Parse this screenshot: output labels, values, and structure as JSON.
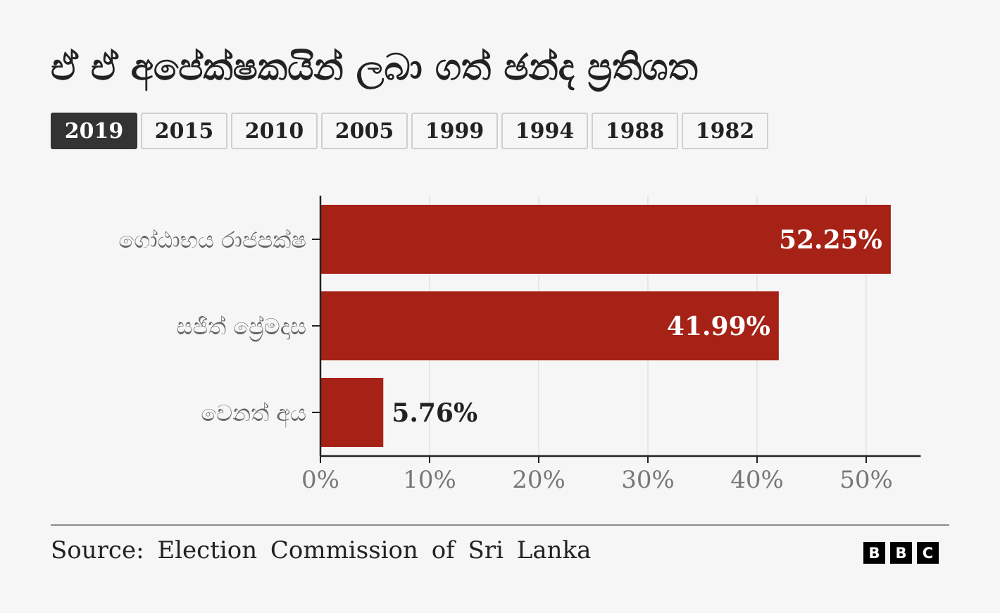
{
  "title": "ඒ ඒ අපේක්ෂකයින් ලබා ගත් ඡන්ද ප්‍රතිශත",
  "tabs": [
    {
      "label": "2019",
      "active": true
    },
    {
      "label": "2015",
      "active": false
    },
    {
      "label": "2010",
      "active": false
    },
    {
      "label": "2005",
      "active": false
    },
    {
      "label": "1999",
      "active": false
    },
    {
      "label": "1994",
      "active": false
    },
    {
      "label": "1988",
      "active": false
    },
    {
      "label": "1982",
      "active": false
    }
  ],
  "chart_data": {
    "type": "bar",
    "orientation": "horizontal",
    "categories": [
      "ගෝඨාභය රාජපක්ෂ",
      "සජිත් ප්‍රේමදාස",
      "වෙනත් අය"
    ],
    "values": [
      52.25,
      41.99,
      5.76
    ],
    "data_labels": [
      "52.25%",
      "41.99%",
      "5.76%"
    ],
    "x_ticks": [
      0,
      10,
      20,
      30,
      40,
      50
    ],
    "x_tick_labels": [
      "0%",
      "10%",
      "20%",
      "30%",
      "40%",
      "50%"
    ],
    "xlim": [
      0,
      55
    ],
    "grid": true,
    "bar_color": "#a62116"
  },
  "footer": {
    "source": "Source: Election Commission of Sri Lanka",
    "logo_letters": [
      "B",
      "B",
      "C"
    ]
  }
}
